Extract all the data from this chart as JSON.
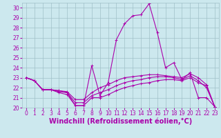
{
  "lines": [
    {
      "x": [
        0,
        1,
        2,
        3,
        4,
        5,
        6,
        7,
        8,
        9,
        10,
        11,
        12,
        13,
        14,
        15,
        16,
        17,
        18,
        19,
        20,
        21,
        22,
        23
      ],
      "y": [
        23,
        22.7,
        21.8,
        21.8,
        21.5,
        21.3,
        20.2,
        20.2,
        21.0,
        21.0,
        21.3,
        21.7,
        22.0,
        22.2,
        22.4,
        22.5,
        22.7,
        22.8,
        22.8,
        22.7,
        23.0,
        22.5,
        22.2,
        20.1
      ]
    },
    {
      "x": [
        0,
        1,
        2,
        3,
        4,
        5,
        6,
        7,
        8,
        9,
        10,
        11,
        12,
        13,
        14,
        15,
        16,
        17,
        18,
        19,
        20,
        21,
        22,
        23
      ],
      "y": [
        23,
        22.7,
        21.8,
        21.8,
        21.6,
        21.5,
        20.5,
        20.5,
        21.2,
        21.5,
        21.8,
        22.2,
        22.5,
        22.7,
        22.8,
        23.0,
        23.1,
        23.1,
        23.0,
        22.8,
        23.2,
        22.7,
        22.0,
        20.1
      ]
    },
    {
      "x": [
        0,
        1,
        2,
        3,
        4,
        5,
        6,
        7,
        8,
        9,
        10,
        11,
        12,
        13,
        14,
        15,
        16,
        17,
        18,
        19,
        20,
        21,
        22,
        23
      ],
      "y": [
        23,
        22.7,
        21.8,
        21.8,
        21.7,
        21.6,
        20.8,
        20.8,
        21.5,
        22.0,
        22.3,
        22.7,
        23.0,
        23.1,
        23.2,
        23.3,
        23.3,
        23.2,
        23.1,
        23.0,
        23.4,
        23.0,
        22.3,
        20.1
      ]
    },
    {
      "x": [
        0,
        1,
        2,
        3,
        4,
        5,
        6,
        7,
        8,
        9,
        10,
        11,
        12,
        13,
        14,
        15,
        16,
        17,
        18,
        19,
        20,
        21,
        22,
        23
      ],
      "y": [
        23,
        22.7,
        21.8,
        21.8,
        21.7,
        21.5,
        20.2,
        20.2,
        24.2,
        21.2,
        22.5,
        26.8,
        28.4,
        29.2,
        29.3,
        30.4,
        27.5,
        24.0,
        24.5,
        22.8,
        23.5,
        21.0,
        21.0,
        20.1
      ]
    }
  ],
  "xlim": [
    -0.5,
    23.5
  ],
  "ylim": [
    20,
    30.5
  ],
  "xticks": [
    0,
    1,
    2,
    3,
    4,
    5,
    6,
    7,
    8,
    9,
    10,
    11,
    12,
    13,
    14,
    15,
    16,
    17,
    18,
    19,
    20,
    21,
    22,
    23
  ],
  "yticks": [
    20,
    21,
    22,
    23,
    24,
    25,
    26,
    27,
    28,
    29,
    30
  ],
  "xlabel": "Windchill (Refroidissement éolien,°C)",
  "bg_color": "#cce8ee",
  "grid_color": "#a0c0c8",
  "line_color": "#aa00aa",
  "tick_fontsize": 5.5,
  "label_fontsize": 7.0
}
